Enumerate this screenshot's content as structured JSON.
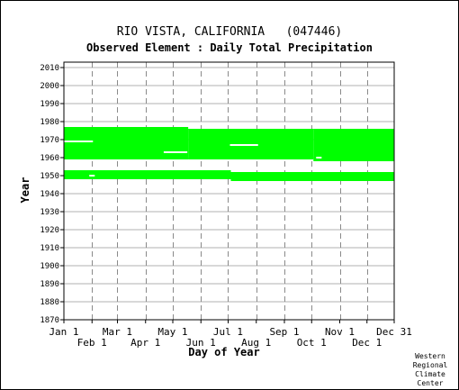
{
  "chart_data": {
    "type": "availability",
    "title": "RIO VISTA, CALIFORNIA   (047446)",
    "subtitle": "Observed Element : Daily Total Precipitation",
    "xlabel": "Day of Year",
    "ylabel": "Year",
    "credit": [
      "Western",
      "Regional",
      "Climate",
      "Center"
    ],
    "ylim": [
      1870,
      2010
    ],
    "yticks": [
      2010,
      2000,
      1990,
      1980,
      1970,
      1960,
      1950,
      1940,
      1930,
      1920,
      1910,
      1900,
      1890,
      1880,
      1870
    ],
    "xlim": [
      1,
      365
    ],
    "xticks_upper": [
      {
        "label": "Jan 1",
        "day": 1
      },
      {
        "label": "Mar 1",
        "day": 60
      },
      {
        "label": "May 1",
        "day": 121
      },
      {
        "label": "Jul 1",
        "day": 182
      },
      {
        "label": "Sep 1",
        "day": 244
      },
      {
        "label": "Nov 1",
        "day": 305
      },
      {
        "label": "Dec 31",
        "day": 365
      }
    ],
    "xticks_lower": [
      {
        "label": "Feb 1",
        "day": 32
      },
      {
        "label": "Apr 1",
        "day": 91
      },
      {
        "label": "Jun 1",
        "day": 152
      },
      {
        "label": "Aug 1",
        "day": 213
      },
      {
        "label": "Oct 1",
        "day": 274
      },
      {
        "label": "Dec 1",
        "day": 335
      }
    ],
    "grid": true,
    "data_color": "#00ff00",
    "blocks": [
      {
        "day_start": 1,
        "day_end": 138,
        "year_start": 1959,
        "year_end": 1977
      },
      {
        "day_start": 138,
        "day_end": 276,
        "year_start": 1959,
        "year_end": 1976
      },
      {
        "day_start": 276,
        "day_end": 365,
        "year_start": 1958,
        "year_end": 1976
      },
      {
        "day_start": 1,
        "day_end": 185,
        "year_start": 1948,
        "year_end": 1953
      },
      {
        "day_start": 185,
        "day_end": 365,
        "year_start": 1947,
        "year_end": 1952
      }
    ],
    "gaps": [
      {
        "day_start": 1,
        "day_end": 33,
        "year": 1969
      },
      {
        "day_start": 29,
        "day_end": 35,
        "year": 1950
      },
      {
        "day_start": 111,
        "day_end": 137,
        "year": 1963
      },
      {
        "day_start": 184,
        "day_end": 215,
        "year": 1967
      },
      {
        "day_start": 279,
        "day_end": 285,
        "year": 1960
      }
    ]
  }
}
